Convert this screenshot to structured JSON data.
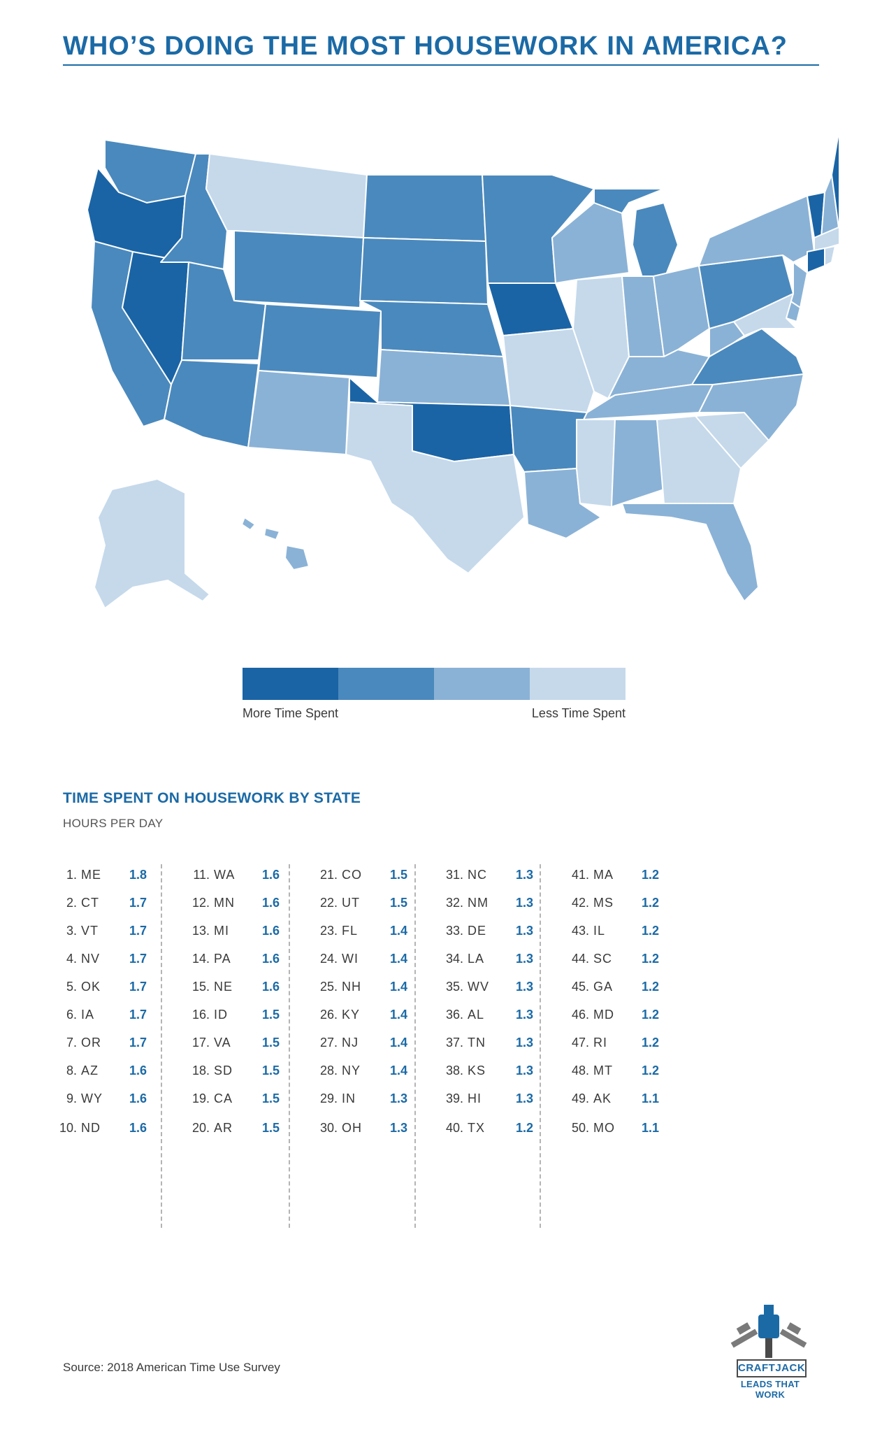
{
  "title": "WHO’S DOING THE MOST HOUSEWORK IN AMERICA?",
  "colors": {
    "accent": "#1b6aa6",
    "tier_1": "#1a64a5",
    "tier_2": "#4a89bd",
    "tier_3": "#8ab2d6",
    "tier_4": "#c5d9eb"
  },
  "legend": {
    "more_label": "More Time Spent",
    "less_label": "Less Time Spent",
    "swatches": [
      "#1a64a5",
      "#4a89bd",
      "#8ab2d6",
      "#c5d9eb"
    ]
  },
  "section": {
    "title": "TIME SPENT ON HOUSEWORK BY STATE",
    "subtitle": "HOURS PER DAY"
  },
  "rankings": [
    {
      "rank": "1.",
      "state": "ME",
      "hours": "1.8"
    },
    {
      "rank": "2.",
      "state": "CT",
      "hours": "1.7"
    },
    {
      "rank": "3.",
      "state": "VT",
      "hours": "1.7"
    },
    {
      "rank": "4.",
      "state": "NV",
      "hours": "1.7"
    },
    {
      "rank": "5.",
      "state": "OK",
      "hours": "1.7"
    },
    {
      "rank": "6.",
      "state": "IA",
      "hours": "1.7"
    },
    {
      "rank": "7.",
      "state": "OR",
      "hours": "1.7"
    },
    {
      "rank": "8.",
      "state": "AZ",
      "hours": "1.6"
    },
    {
      "rank": "9.",
      "state": "WY",
      "hours": "1.6"
    },
    {
      "rank": "10.",
      "state": "ND",
      "hours": "1.6"
    },
    {
      "rank": "11.",
      "state": "WA",
      "hours": "1.6"
    },
    {
      "rank": "12.",
      "state": "MN",
      "hours": "1.6"
    },
    {
      "rank": "13.",
      "state": "MI",
      "hours": "1.6"
    },
    {
      "rank": "14.",
      "state": "PA",
      "hours": "1.6"
    },
    {
      "rank": "15.",
      "state": "NE",
      "hours": "1.6"
    },
    {
      "rank": "16.",
      "state": "ID",
      "hours": "1.5"
    },
    {
      "rank": "17.",
      "state": "VA",
      "hours": "1.5"
    },
    {
      "rank": "18.",
      "state": "SD",
      "hours": "1.5"
    },
    {
      "rank": "19.",
      "state": "CA",
      "hours": "1.5"
    },
    {
      "rank": "20.",
      "state": "AR",
      "hours": "1.5"
    },
    {
      "rank": "21.",
      "state": "CO",
      "hours": "1.5"
    },
    {
      "rank": "22.",
      "state": "UT",
      "hours": "1.5"
    },
    {
      "rank": "23.",
      "state": "FL",
      "hours": "1.4"
    },
    {
      "rank": "24.",
      "state": "WI",
      "hours": "1.4"
    },
    {
      "rank": "25.",
      "state": "NH",
      "hours": "1.4"
    },
    {
      "rank": "26.",
      "state": "KY",
      "hours": "1.4"
    },
    {
      "rank": "27.",
      "state": "NJ",
      "hours": "1.4"
    },
    {
      "rank": "28.",
      "state": "NY",
      "hours": "1.4"
    },
    {
      "rank": "29.",
      "state": "IN",
      "hours": "1.3"
    },
    {
      "rank": "30.",
      "state": "OH",
      "hours": "1.3"
    },
    {
      "rank": "31.",
      "state": "NC",
      "hours": "1.3"
    },
    {
      "rank": "32.",
      "state": "NM",
      "hours": "1.3"
    },
    {
      "rank": "33.",
      "state": "DE",
      "hours": "1.3"
    },
    {
      "rank": "34.",
      "state": "LA",
      "hours": "1.3"
    },
    {
      "rank": "35.",
      "state": "WV",
      "hours": "1.3"
    },
    {
      "rank": "36.",
      "state": "AL",
      "hours": "1.3"
    },
    {
      "rank": "37.",
      "state": "TN",
      "hours": "1.3"
    },
    {
      "rank": "38.",
      "state": "KS",
      "hours": "1.3"
    },
    {
      "rank": "39.",
      "state": "HI",
      "hours": "1.3"
    },
    {
      "rank": "40.",
      "state": "TX",
      "hours": "1.2"
    },
    {
      "rank": "41.",
      "state": "MA",
      "hours": "1.2"
    },
    {
      "rank": "42.",
      "state": "MS",
      "hours": "1.2"
    },
    {
      "rank": "43.",
      "state": "IL",
      "hours": "1.2"
    },
    {
      "rank": "44.",
      "state": "SC",
      "hours": "1.2"
    },
    {
      "rank": "45.",
      "state": "GA",
      "hours": "1.2"
    },
    {
      "rank": "46.",
      "state": "MD",
      "hours": "1.2"
    },
    {
      "rank": "47.",
      "state": "RI",
      "hours": "1.2"
    },
    {
      "rank": "48.",
      "state": "MT",
      "hours": "1.2"
    },
    {
      "rank": "49.",
      "state": "AK",
      "hours": "1.1"
    },
    {
      "rank": "50.",
      "state": "MO",
      "hours": "1.1"
    }
  ],
  "map_states": {
    "WA": 2,
    "OR": 1,
    "CA": 2,
    "NV": 1,
    "ID": 2,
    "MT": 4,
    "WY": 2,
    "UT": 2,
    "AZ": 2,
    "CO": 2,
    "NM": 3,
    "ND": 2,
    "SD": 2,
    "NE": 2,
    "KS": 3,
    "OK": 1,
    "TX": 4,
    "MN": 2,
    "IA": 1,
    "MO": 4,
    "AR": 2,
    "LA": 3,
    "WI": 3,
    "IL": 4,
    "MI": 2,
    "IN": 3,
    "OH": 3,
    "KY": 3,
    "TN": 3,
    "MS": 4,
    "AL": 3,
    "GA": 4,
    "FL": 3,
    "SC": 4,
    "NC": 3,
    "VA": 2,
    "WV": 3,
    "PA": 2,
    "NY": 3,
    "VT": 1,
    "NH": 3,
    "ME": 1,
    "MA": 4,
    "CT": 1,
    "RI": 4,
    "NJ": 3,
    "DE": 3,
    "MD": 4,
    "AK": 4,
    "HI": 3
  },
  "source": "Source: 2018 American Time Use Survey",
  "logo": {
    "name": "CRAFTJACK",
    "tagline": "LEADS THAT WORK"
  }
}
